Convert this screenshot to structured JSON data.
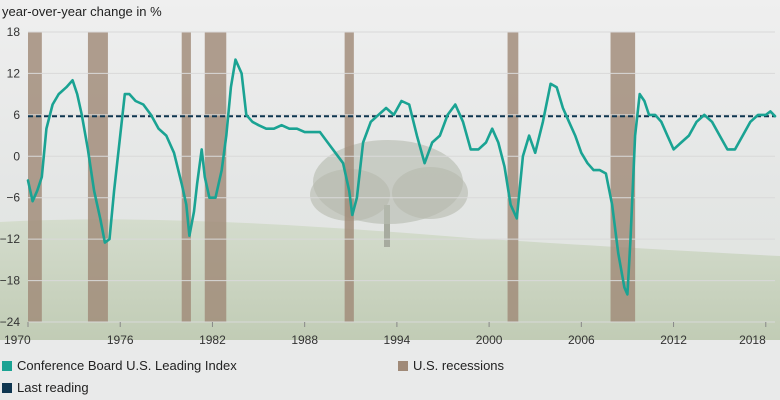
{
  "chart_data": {
    "type": "line",
    "ylabel": "year-over-year change in %",
    "xlim": [
      1970,
      2018.6
    ],
    "ylim": [
      -24,
      18
    ],
    "x_ticks": [
      "1970",
      "1976",
      "1982",
      "1988",
      "1994",
      "2000",
      "2006",
      "2012",
      "2018"
    ],
    "y_ticks": [
      "18",
      "12",
      "6",
      "0",
      "−6",
      "−12",
      "−18",
      "−24"
    ],
    "last_reading": 5.8,
    "recessions": [
      [
        1970.0,
        1970.9
      ],
      [
        1973.9,
        1975.2
      ],
      [
        1980.0,
        1980.6
      ],
      [
        1981.5,
        1982.9
      ],
      [
        1990.6,
        1991.2
      ],
      [
        2001.2,
        2001.9
      ],
      [
        2007.9,
        2009.5
      ]
    ],
    "series": [
      {
        "name": "Conference Board U.S. Leading Index",
        "x": [
          1970.0,
          1970.3,
          1970.6,
          1970.9,
          1971.2,
          1971.6,
          1972.0,
          1972.5,
          1972.9,
          1973.2,
          1973.5,
          1973.9,
          1974.3,
          1974.7,
          1975.0,
          1975.3,
          1975.6,
          1976.0,
          1976.3,
          1976.6,
          1977.0,
          1977.5,
          1978.0,
          1978.5,
          1979.0,
          1979.5,
          1980.0,
          1980.3,
          1980.5,
          1980.8,
          1981.0,
          1981.3,
          1981.5,
          1981.8,
          1982.2,
          1982.6,
          1982.9,
          1983.2,
          1983.5,
          1983.9,
          1984.2,
          1984.6,
          1985.0,
          1985.5,
          1986.0,
          1986.5,
          1987.0,
          1987.5,
          1988.0,
          1988.5,
          1989.0,
          1989.5,
          1990.0,
          1990.5,
          1990.9,
          1991.1,
          1991.4,
          1991.8,
          1992.3,
          1992.8,
          1993.3,
          1993.8,
          1994.3,
          1994.8,
          1995.3,
          1995.8,
          1996.3,
          1996.8,
          1997.3,
          1997.8,
          1998.3,
          1998.8,
          1999.3,
          1999.8,
          2000.2,
          2000.6,
          2001.0,
          2001.4,
          2001.8,
          2002.2,
          2002.6,
          2003.0,
          2003.5,
          2004.0,
          2004.4,
          2004.8,
          2005.2,
          2005.6,
          2006.0,
          2006.4,
          2006.8,
          2007.2,
          2007.6,
          2008.0,
          2008.4,
          2008.8,
          2009.0,
          2009.2,
          2009.5,
          2009.8,
          2010.1,
          2010.4,
          2010.8,
          2011.2,
          2011.6,
          2012.0,
          2012.5,
          2013.0,
          2013.5,
          2014.0,
          2014.5,
          2015.0,
          2015.5,
          2016.0,
          2016.5,
          2017.0,
          2017.5,
          2018.0,
          2018.3,
          2018.6
        ],
        "values": [
          -3.5,
          -6.5,
          -5,
          -3,
          4,
          7.5,
          9,
          10,
          11,
          9,
          6,
          1,
          -5,
          -9,
          -12.5,
          -12,
          -5,
          3,
          9,
          9,
          8,
          7.5,
          6,
          4,
          3,
          0.5,
          -4,
          -7,
          -11.5,
          -8,
          -4,
          1,
          -3,
          -6,
          -6,
          -2,
          3,
          10,
          14,
          12,
          6,
          5,
          4.5,
          4,
          4,
          4.5,
          4,
          4,
          3.5,
          3.5,
          3.5,
          2,
          0.5,
          -1,
          -5,
          -8.5,
          -6,
          2,
          5,
          6,
          7,
          6,
          8,
          7.5,
          3,
          -1,
          2,
          3,
          6,
          7.5,
          5,
          1,
          1,
          2,
          4,
          2,
          -1.5,
          -7,
          -9,
          0,
          3,
          0.5,
          5,
          10.5,
          10,
          7,
          5,
          3,
          0.5,
          -1,
          -2,
          -2,
          -2.5,
          -7,
          -14,
          -19,
          -20,
          -12,
          3,
          9,
          8,
          6,
          6,
          5,
          3,
          1,
          2,
          3,
          5,
          6,
          5,
          3,
          1,
          1,
          3,
          5,
          6,
          6,
          6.5,
          5.8
        ]
      }
    ],
    "legend": [
      {
        "label": "Conference Board U.S. Leading Index",
        "color": "#1aa393"
      },
      {
        "label": "U.S. recessions",
        "color": "#a08a78"
      },
      {
        "label": "Last reading",
        "color": "#0f3650"
      }
    ],
    "colors": {
      "line": "#1aa393",
      "recession": "#a08a78",
      "last_reading": "#0f3650",
      "grid": "#d9d9d9"
    }
  }
}
